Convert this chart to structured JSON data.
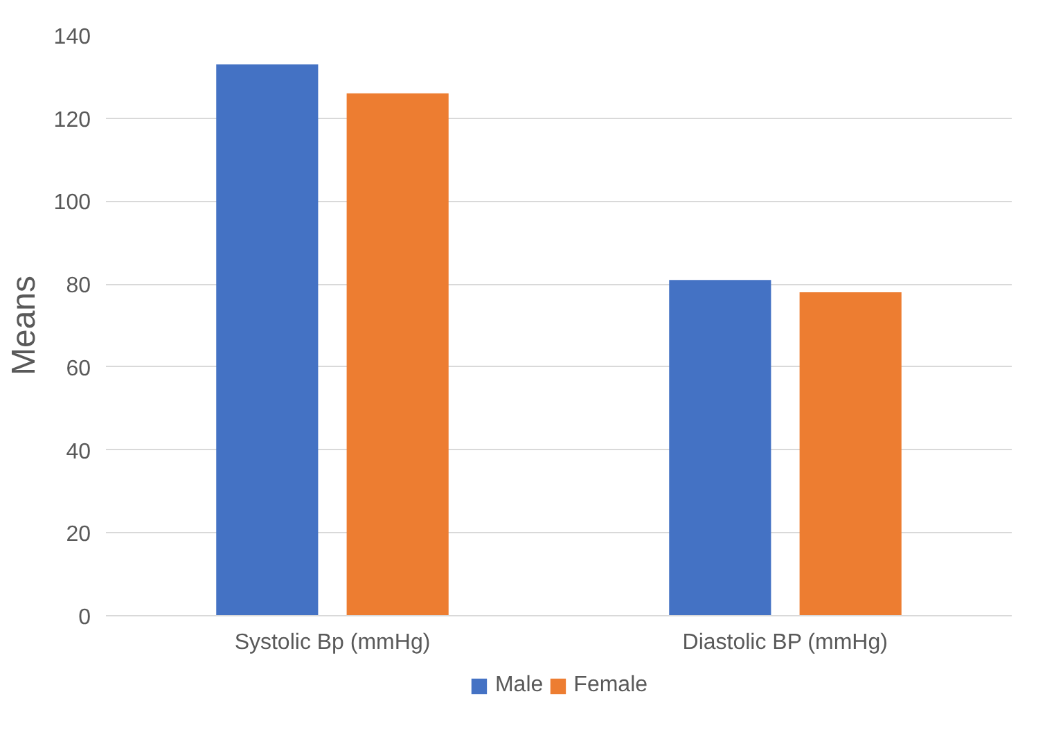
{
  "chart_data": {
    "type": "bar",
    "ylabel": "Means",
    "categories": [
      "Systolic Bp (mmHg)",
      "Diastolic BP (mmHg)"
    ],
    "series": [
      {
        "name": "Male",
        "color": "#4472c4",
        "values": [
          133,
          81
        ]
      },
      {
        "name": "Female",
        "color": "#ed7d31",
        "values": [
          126,
          78
        ]
      }
    ],
    "ylim": [
      0,
      140
    ],
    "yticks": [
      0,
      20,
      40,
      60,
      80,
      100,
      120,
      140
    ],
    "grid": "y",
    "legend": "bottom"
  }
}
